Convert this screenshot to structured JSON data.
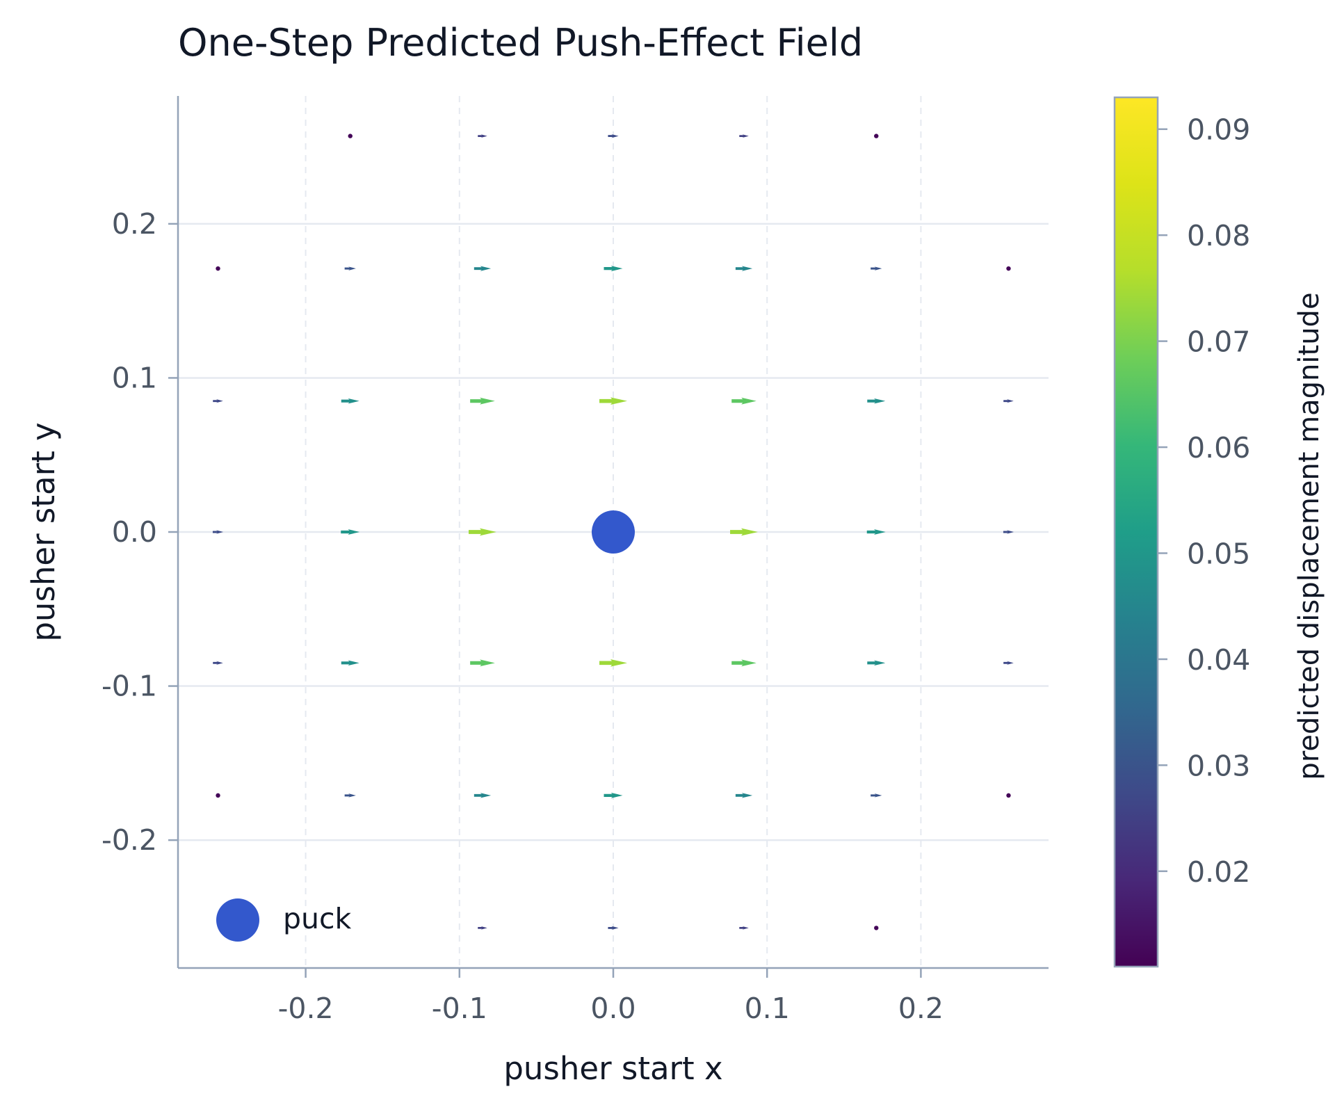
{
  "chart_data": {
    "type": "quiver",
    "title": "One-Step Predicted Push-Effect Field",
    "xlabel": "pusher start x",
    "ylabel": "pusher start y",
    "xlim": [
      -0.283,
      0.283
    ],
    "ylim": [
      -0.283,
      0.283
    ],
    "xticks": [
      "-0.2",
      "-0.1",
      "0.0",
      "0.1",
      "0.2"
    ],
    "yticks": [
      "0.2",
      "0.1",
      "0.0",
      "-0.1",
      "-0.2"
    ],
    "xtick_values": [
      -0.2,
      -0.1,
      0.0,
      0.1,
      0.2
    ],
    "ytick_values": [
      0.2,
      0.1,
      0.0,
      -0.1,
      -0.2
    ],
    "grid": true,
    "colorbar": {
      "label": "predicted displacement magnitude",
      "min": 0.011,
      "max": 0.093,
      "ticks": [
        "0.09",
        "0.08",
        "0.07",
        "0.06",
        "0.05",
        "0.04",
        "0.03",
        "0.02"
      ],
      "tick_values": [
        0.09,
        0.08,
        0.07,
        0.06,
        0.05,
        0.04,
        0.03,
        0.02
      ],
      "colormap": "viridis"
    },
    "puck": {
      "x": 0.0,
      "y": 0.0,
      "color": "#3358cc"
    },
    "legend": {
      "label": "puck",
      "position": "lower-left"
    },
    "arrows": [
      {
        "x": -0.171,
        "y": 0.257,
        "m": 0.012
      },
      {
        "x": -0.085,
        "y": 0.257,
        "m": 0.025
      },
      {
        "x": 0.0,
        "y": 0.257,
        "m": 0.028
      },
      {
        "x": 0.085,
        "y": 0.257,
        "m": 0.025
      },
      {
        "x": 0.171,
        "y": 0.257,
        "m": 0.012
      },
      {
        "x": -0.257,
        "y": 0.171,
        "m": 0.012
      },
      {
        "x": -0.171,
        "y": 0.171,
        "m": 0.03
      },
      {
        "x": -0.085,
        "y": 0.171,
        "m": 0.045
      },
      {
        "x": 0.0,
        "y": 0.171,
        "m": 0.05
      },
      {
        "x": 0.085,
        "y": 0.171,
        "m": 0.045
      },
      {
        "x": 0.171,
        "y": 0.171,
        "m": 0.03
      },
      {
        "x": 0.257,
        "y": 0.171,
        "m": 0.012
      },
      {
        "x": -0.257,
        "y": 0.085,
        "m": 0.027
      },
      {
        "x": -0.171,
        "y": 0.085,
        "m": 0.048
      },
      {
        "x": -0.085,
        "y": 0.085,
        "m": 0.066
      },
      {
        "x": 0.0,
        "y": 0.085,
        "m": 0.074
      },
      {
        "x": 0.085,
        "y": 0.085,
        "m": 0.066
      },
      {
        "x": 0.171,
        "y": 0.085,
        "m": 0.048
      },
      {
        "x": 0.257,
        "y": 0.085,
        "m": 0.027
      },
      {
        "x": -0.257,
        "y": 0.0,
        "m": 0.028
      },
      {
        "x": -0.171,
        "y": 0.0,
        "m": 0.05
      },
      {
        "x": -0.085,
        "y": 0.0,
        "m": 0.074
      },
      {
        "x": 0.0,
        "y": 0.0,
        "m": 0.093
      },
      {
        "x": 0.085,
        "y": 0.0,
        "m": 0.074
      },
      {
        "x": 0.171,
        "y": 0.0,
        "m": 0.05
      },
      {
        "x": 0.257,
        "y": 0.0,
        "m": 0.028
      },
      {
        "x": -0.257,
        "y": -0.085,
        "m": 0.027
      },
      {
        "x": -0.171,
        "y": -0.085,
        "m": 0.048
      },
      {
        "x": -0.085,
        "y": -0.085,
        "m": 0.066
      },
      {
        "x": 0.0,
        "y": -0.085,
        "m": 0.074
      },
      {
        "x": 0.085,
        "y": -0.085,
        "m": 0.066
      },
      {
        "x": 0.171,
        "y": -0.085,
        "m": 0.048
      },
      {
        "x": 0.257,
        "y": -0.085,
        "m": 0.027
      },
      {
        "x": -0.257,
        "y": -0.171,
        "m": 0.012
      },
      {
        "x": -0.171,
        "y": -0.171,
        "m": 0.03
      },
      {
        "x": -0.085,
        "y": -0.171,
        "m": 0.045
      },
      {
        "x": 0.0,
        "y": -0.171,
        "m": 0.05
      },
      {
        "x": 0.085,
        "y": -0.171,
        "m": 0.045
      },
      {
        "x": 0.171,
        "y": -0.171,
        "m": 0.03
      },
      {
        "x": 0.257,
        "y": -0.171,
        "m": 0.012
      },
      {
        "x": -0.085,
        "y": -0.257,
        "m": 0.025
      },
      {
        "x": 0.0,
        "y": -0.257,
        "m": 0.028
      },
      {
        "x": 0.085,
        "y": -0.257,
        "m": 0.025
      },
      {
        "x": 0.171,
        "y": -0.257,
        "m": 0.012
      }
    ]
  }
}
